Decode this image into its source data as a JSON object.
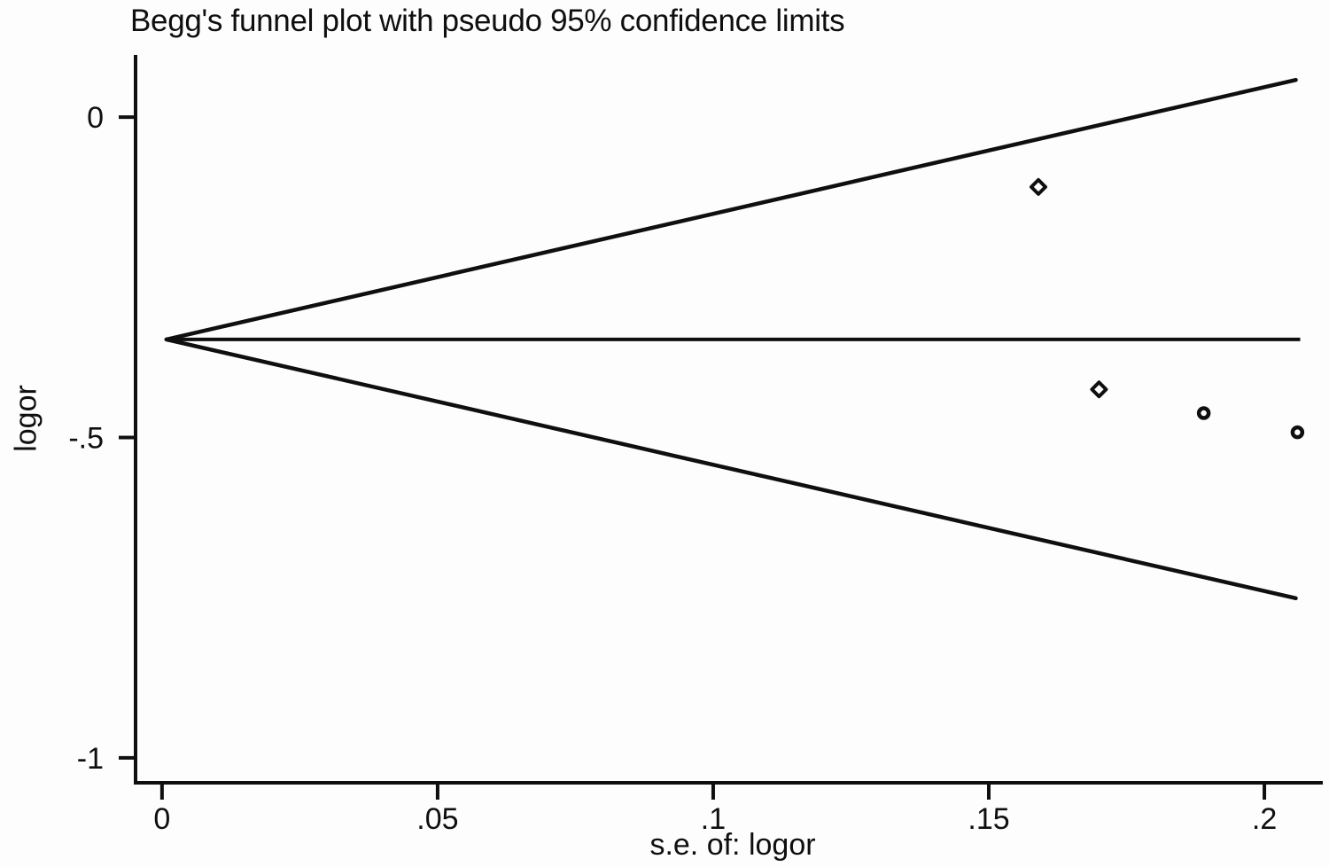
{
  "page": {
    "background": "#fdfdfd",
    "ink": "#0f0f0f"
  },
  "chart_data": {
    "type": "scatter",
    "title": "Begg's funnel plot with pseudo 95% confidence limits",
    "xlabel": "s.e. of: logor",
    "ylabel": "logor",
    "xlim": [
      -0.0048,
      0.2106
    ],
    "ylim": [
      -1.039,
      0.097
    ],
    "grid": false,
    "legend": false,
    "x_ticks": [
      {
        "value": 0,
        "label": "0"
      },
      {
        "value": 0.05,
        "label": ".05"
      },
      {
        "value": 0.1,
        "label": ".1"
      },
      {
        "value": 0.15,
        "label": ".15"
      },
      {
        "value": 0.2,
        "label": ".2"
      }
    ],
    "y_ticks": [
      {
        "value": 0,
        "label": "0"
      },
      {
        "value": -0.5,
        "label": "-.5"
      },
      {
        "value": -1,
        "label": "-1"
      }
    ],
    "pooled_line": {
      "logor": -0.347,
      "se_start": 0.0008,
      "se_end": 0.2065
    },
    "funnel": {
      "vertex_se": 0.0008,
      "vertex_logor": -0.347,
      "end_se": 0.2057,
      "upper_end_logor": 0.058,
      "lower_end_logor": -0.751,
      "confidence_multiplier": 1.96
    },
    "points": [
      {
        "se": 0.159,
        "logor": -0.109,
        "marker": "diamond"
      },
      {
        "se": 0.17,
        "logor": -0.425,
        "marker": "diamond"
      },
      {
        "se": 0.189,
        "logor": -0.462,
        "marker": "circle"
      },
      {
        "se": 0.206,
        "logor": -0.492,
        "marker": "circle"
      }
    ]
  }
}
